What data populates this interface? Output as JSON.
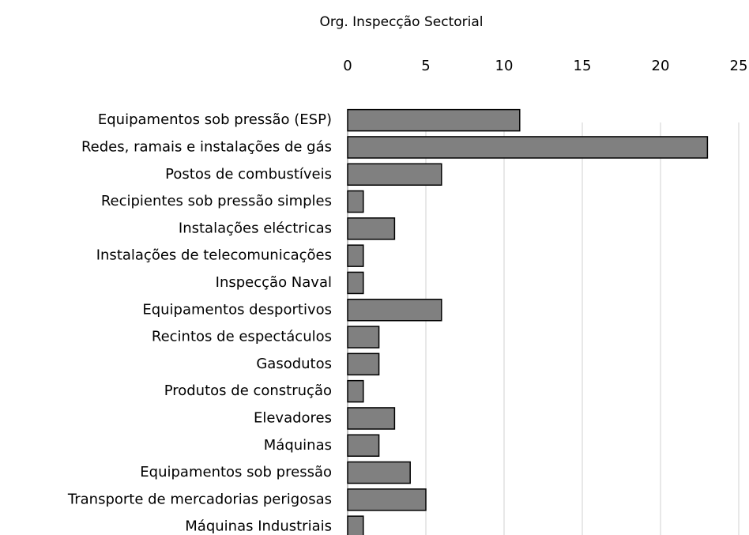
{
  "chart_data": {
    "type": "bar",
    "orientation": "horizontal",
    "title": "Org. Inspecção Sectorial",
    "categories": [
      "Equipamentos sob pressão (ESP)",
      "Redes, ramais e instalações de gás",
      "Postos de combustíveis",
      "Recipientes sob pressão simples",
      "Instalações eléctricas",
      "Instalações de telecomunicações",
      "Inspecção Naval",
      "Equipamentos desportivos",
      "Recintos de espectáculos",
      "Gasodutos",
      "Produtos de construção",
      "Elevadores",
      "Máquinas",
      "Equipamentos sob pressão",
      "Transporte de mercadorias perigosas",
      "Máquinas Industriais"
    ],
    "values": [
      11,
      23,
      6,
      1,
      3,
      1,
      1,
      6,
      2,
      2,
      1,
      3,
      2,
      4,
      5,
      1
    ],
    "color": "#808080",
    "xlim": [
      0,
      25
    ],
    "xticks": [
      0,
      5,
      10,
      15,
      20,
      25
    ],
    "grid": true
  }
}
